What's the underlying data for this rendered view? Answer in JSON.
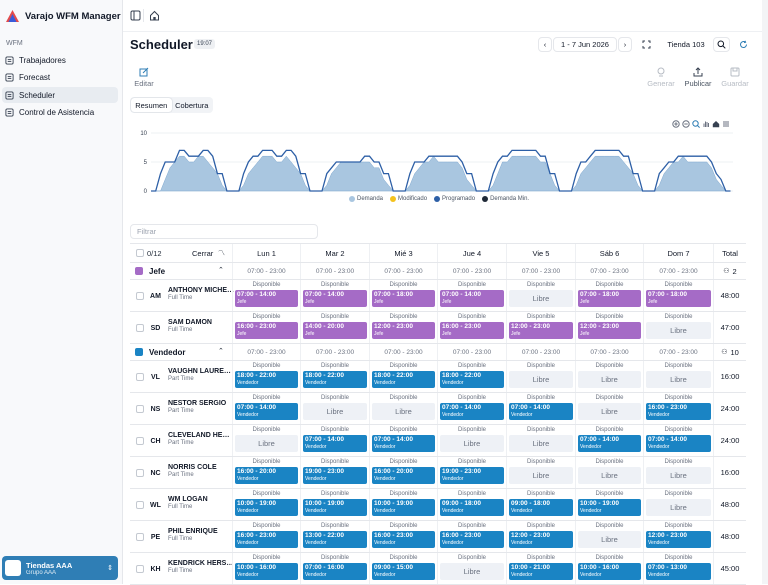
{
  "app": {
    "title": "Varajo WFM Manager"
  },
  "sidebar": {
    "section": "WFM",
    "items": [
      {
        "label": "Trabajadores",
        "icon": "users-icon"
      },
      {
        "label": "Forecast",
        "icon": "forecast-icon"
      },
      {
        "label": "Scheduler",
        "icon": "calendar-icon",
        "active": true
      },
      {
        "label": "Control de Asistencia",
        "icon": "clock-icon"
      }
    ],
    "store": {
      "name": "Tiendas AAA",
      "group": "Grupo AAA"
    }
  },
  "header": {
    "title": "Scheduler",
    "time": "19:07",
    "date_range": "1 - 7 Jun 2026",
    "store_select": "Tienda 103"
  },
  "toolbar": {
    "edit": "Editar",
    "generate": "Generar",
    "publish": "Publicar",
    "save": "Guardar"
  },
  "view_tabs": [
    "Resumen",
    "Cobertura"
  ],
  "chart_data": {
    "type": "area",
    "categories": [
      "Lun 1",
      "Mar 2",
      "Mié 3",
      "Jue 4",
      "Vie 5",
      "Sáb 6",
      "Dom 7"
    ],
    "y_ticks": [
      "10",
      "5",
      "0"
    ],
    "ylim": [
      0,
      10
    ],
    "legend": [
      "Demanda",
      "Modificado",
      "Programado",
      "Demanda Min."
    ],
    "colors": {
      "Demanda": "#a9c6e0",
      "Modificado": "#f4c21d",
      "Programado": "#2d5fa6",
      "Demanda Min.": "#1f2937"
    },
    "series": [
      {
        "name": "Demanda",
        "values": [
          [
            0,
            0,
            0,
            2,
            4,
            5,
            6,
            6,
            5,
            5,
            6,
            6,
            5,
            4,
            3,
            1,
            0,
            0
          ],
          [
            0,
            0,
            1,
            3,
            4,
            5,
            6,
            6,
            6,
            5,
            5,
            6,
            5,
            4,
            3,
            1,
            0,
            0
          ],
          [
            0,
            0,
            1,
            3,
            4,
            5,
            5,
            5,
            5,
            5,
            5,
            5,
            4,
            4,
            2,
            1,
            0,
            0
          ],
          [
            0,
            0,
            1,
            3,
            4,
            5,
            5,
            6,
            5,
            5,
            5,
            5,
            5,
            4,
            2,
            1,
            0,
            0
          ],
          [
            0,
            0,
            1,
            3,
            5,
            5,
            6,
            6,
            6,
            6,
            6,
            6,
            5,
            5,
            3,
            1,
            0,
            0
          ],
          [
            0,
            0,
            1,
            3,
            4,
            5,
            6,
            6,
            6,
            6,
            6,
            6,
            5,
            4,
            3,
            1,
            0,
            0
          ],
          [
            0,
            0,
            1,
            3,
            4,
            5,
            5,
            6,
            5,
            5,
            5,
            5,
            5,
            4,
            2,
            1,
            0,
            0
          ]
        ]
      },
      {
        "name": "Programado",
        "values": [
          [
            0,
            0,
            3,
            5,
            5,
            5,
            7,
            7,
            6,
            6,
            6,
            7,
            7,
            6,
            3,
            3,
            0,
            0
          ],
          [
            0,
            0,
            3,
            5,
            6,
            6,
            7,
            7,
            7,
            6,
            6,
            7,
            7,
            6,
            3,
            3,
            0,
            0
          ],
          [
            0,
            0,
            3,
            4,
            5,
            5,
            5,
            5,
            5,
            5,
            6,
            6,
            5,
            5,
            3,
            3,
            0,
            0
          ],
          [
            0,
            0,
            3,
            5,
            5,
            5,
            6,
            6,
            6,
            6,
            6,
            6,
            6,
            5,
            3,
            3,
            0,
            0
          ],
          [
            0,
            0,
            3,
            5,
            6,
            6,
            7,
            7,
            7,
            7,
            7,
            7,
            6,
            6,
            3,
            3,
            0,
            0
          ],
          [
            0,
            0,
            3,
            5,
            5,
            6,
            7,
            7,
            7,
            7,
            7,
            7,
            6,
            6,
            3,
            3,
            0,
            0
          ],
          [
            0,
            0,
            3,
            4,
            5,
            5,
            6,
            6,
            6,
            6,
            6,
            6,
            6,
            5,
            3,
            2,
            0,
            0
          ]
        ]
      }
    ]
  },
  "filter": {
    "placeholder": "Filtrar"
  },
  "table": {
    "selected": "0/12",
    "close": "Cerrar",
    "days": [
      "Lun 1",
      "Mar 2",
      "Mié 3",
      "Jue 4",
      "Vie 5",
      "Sáb 6",
      "Dom 7"
    ],
    "total_label": "Total",
    "available": "Disponible",
    "free": "Libre",
    "groups": [
      {
        "name": "Jefe",
        "color": "#a56bc6",
        "count": "2",
        "hours": [
          "07:00 - 23:00",
          "07:00 - 23:00",
          "07:00 - 23:00",
          "07:00 - 23:00",
          "07:00 - 23:00",
          "07:00 - 23:00",
          "07:00 - 23:00"
        ],
        "employees": [
          {
            "initials": "AM",
            "name": "ANTHONY MICHEAL",
            "type": "Full Time",
            "total": "48:00",
            "shifts": [
              "07:00 - 14:00",
              "07:00 - 14:00",
              "07:00 - 18:00",
              "07:00 - 14:00",
              "",
              "07:00 - 18:00",
              "07:00 - 18:00"
            ],
            "role": "Jefe"
          },
          {
            "initials": "SD",
            "name": "SAM DAMON",
            "type": "Full Time",
            "total": "47:00",
            "shifts": [
              "16:00 - 23:00",
              "14:00 - 20:00",
              "12:00 - 23:00",
              "16:00 - 23:00",
              "12:00 - 23:00",
              "12:00 - 23:00",
              ""
            ],
            "role": "Jefe"
          }
        ]
      },
      {
        "name": "Vendedor",
        "color": "#1a84c4",
        "count": "10",
        "hours": [
          "07:00 - 23:00",
          "07:00 - 23:00",
          "07:00 - 23:00",
          "07:00 - 23:00",
          "07:00 - 23:00",
          "07:00 - 23:00",
          "07:00 - 23:00"
        ],
        "employees": [
          {
            "initials": "VL",
            "name": "VAUGHN LAURENCE",
            "type": "Part Time",
            "total": "16:00",
            "shifts": [
              "18:00 - 22:00",
              "18:00 - 22:00",
              "18:00 - 22:00",
              "18:00 - 22:00",
              "",
              "",
              ""
            ],
            "role": "Vendedor"
          },
          {
            "initials": "NS",
            "name": "NESTOR SERGIO",
            "type": "Part Time",
            "total": "24:00",
            "shifts": [
              "07:00 - 14:00",
              "",
              "",
              "07:00 - 14:00",
              "07:00 - 14:00",
              "",
              "16:00 - 23:00"
            ],
            "role": "Vendedor"
          },
          {
            "initials": "CH",
            "name": "CLEVELAND HERMAN",
            "type": "Part Time",
            "total": "24:00",
            "shifts": [
              "",
              "07:00 - 14:00",
              "07:00 - 14:00",
              "",
              "",
              "07:00 - 14:00",
              "07:00 - 14:00"
            ],
            "role": "Vendedor"
          },
          {
            "initials": "NC",
            "name": "NORRIS COLE",
            "type": "Part Time",
            "total": "16:00",
            "shifts": [
              "16:00 - 20:00",
              "19:00 - 23:00",
              "16:00 - 20:00",
              "19:00 - 23:00",
              "",
              "",
              ""
            ],
            "role": "Vendedor"
          },
          {
            "initials": "WL",
            "name": "WM LOGAN",
            "type": "Full Time",
            "total": "48:00",
            "shifts": [
              "10:00 - 19:00",
              "10:00 - 19:00",
              "10:00 - 19:00",
              "09:00 - 18:00",
              "09:00 - 18:00",
              "10:00 - 19:00",
              ""
            ],
            "role": "Vendedor"
          },
          {
            "initials": "PE",
            "name": "PHIL ENRIQUE",
            "type": "Full Time",
            "total": "48:00",
            "shifts": [
              "16:00 - 23:00",
              "13:00 - 22:00",
              "16:00 - 23:00",
              "16:00 - 23:00",
              "12:00 - 23:00",
              "",
              "12:00 - 23:00"
            ],
            "role": "Vendedor"
          },
          {
            "initials": "KH",
            "name": "KENDRICK HERSCHEL",
            "type": "Full Time",
            "total": "45:00",
            "shifts": [
              "10:00 - 16:00",
              "07:00 - 16:00",
              "09:00 - 15:00",
              "",
              "10:00 - 21:00",
              "10:00 - 16:00",
              "07:00 - 13:00"
            ],
            "role": "Vendedor"
          }
        ]
      }
    ]
  }
}
